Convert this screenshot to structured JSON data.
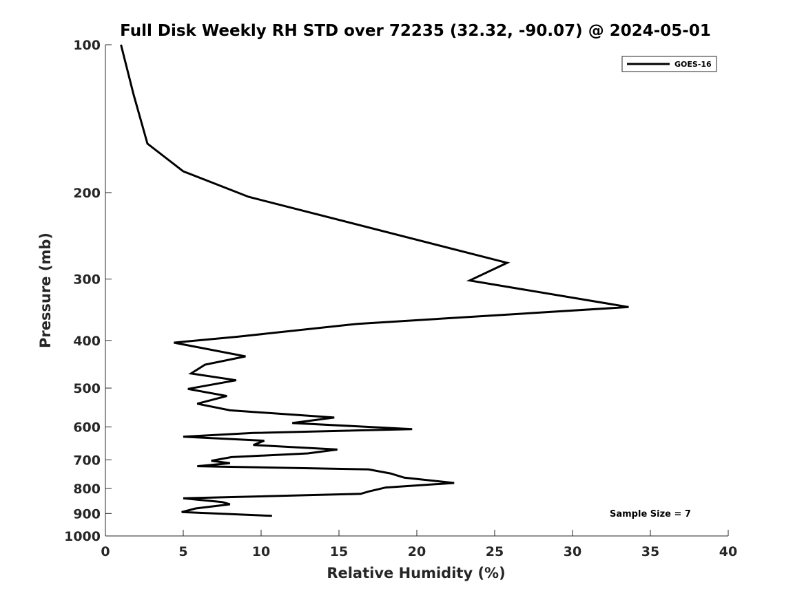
{
  "chart_data": {
    "type": "line",
    "title": "Full Disk Weekly RH STD over 72235 (32.32, -90.07) @ 2024-05-01",
    "xlabel": "Relative Humidity (%)",
    "ylabel": "Pressure (mb)",
    "xlim": [
      0,
      40
    ],
    "ylim": [
      1000,
      100
    ],
    "yscale": "log",
    "y_reversed": true,
    "xticks": [
      0,
      5,
      10,
      15,
      20,
      25,
      30,
      35,
      40
    ],
    "yticks": [
      100,
      200,
      300,
      400,
      500,
      600,
      700,
      800,
      900,
      1000
    ],
    "grid": false,
    "legend_position": "top-right",
    "series": [
      {
        "name": "GOES-16",
        "color": "#000000",
        "points": [
          [
            1.0,
            100
          ],
          [
            1.8,
            126
          ],
          [
            2.7,
            159
          ],
          [
            5.0,
            181
          ],
          [
            9.2,
            204
          ],
          [
            25.8,
            278
          ],
          [
            23.4,
            302
          ],
          [
            33.6,
            342
          ],
          [
            16.2,
            370
          ],
          [
            8.5,
            393
          ],
          [
            4.4,
            404
          ],
          [
            9.0,
            431
          ],
          [
            6.4,
            448
          ],
          [
            5.5,
            467
          ],
          [
            8.4,
            482
          ],
          [
            5.3,
            502
          ],
          [
            7.8,
            519
          ],
          [
            5.9,
            538
          ],
          [
            8.0,
            555
          ],
          [
            14.7,
            574
          ],
          [
            12.0,
            589
          ],
          [
            19.7,
            606
          ],
          [
            9.5,
            617
          ],
          [
            5.0,
            628
          ],
          [
            10.2,
            640
          ],
          [
            9.5,
            653
          ],
          [
            14.9,
            667
          ],
          [
            13.0,
            679
          ],
          [
            8.1,
            691
          ],
          [
            6.8,
            703
          ],
          [
            8.0,
            711
          ],
          [
            5.9,
            721
          ],
          [
            16.9,
            732
          ],
          [
            18.3,
            746
          ],
          [
            19.2,
            761
          ],
          [
            22.4,
            780
          ],
          [
            18.0,
            797
          ],
          [
            16.9,
            812
          ],
          [
            16.4,
            821
          ],
          [
            5.0,
            838
          ],
          [
            7.5,
            853
          ],
          [
            8.0,
            862
          ],
          [
            5.8,
            879
          ],
          [
            4.9,
            894
          ],
          [
            10.7,
            910
          ]
        ]
      }
    ],
    "legend_entries": [
      "GOES-16"
    ],
    "annotation": "Sample Size = 7"
  }
}
